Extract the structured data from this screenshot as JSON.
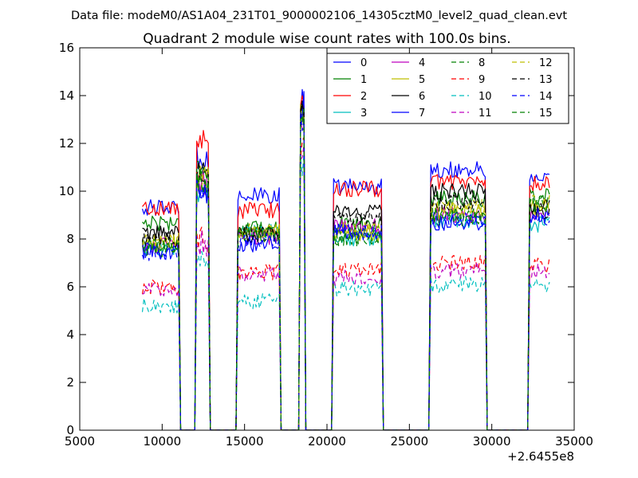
{
  "figure": {
    "suptitle": "Data file: modeM0/AS1A04_231T01_9000002106_14305cztM0_level2_quad_clean.evt",
    "offset_label": "+2.6455e8"
  },
  "chart_data": {
    "type": "line",
    "title": "Quadrant 2 module wise count rates with 100.0s bins.",
    "xlabel": "",
    "ylabel": "",
    "xlim": [
      5000,
      35000
    ],
    "ylim": [
      0,
      16
    ],
    "x_offset": 264550000,
    "xticks": [
      5000,
      10000,
      15000,
      20000,
      25000,
      30000,
      35000
    ],
    "yticks": [
      0,
      2,
      4,
      6,
      8,
      10,
      12,
      14,
      16
    ],
    "grid": false,
    "legend_location": "upper right",
    "legend_columns": 4,
    "active_segments": [
      {
        "start": 8800,
        "end": 11000
      },
      {
        "start": 12100,
        "end": 12800
      },
      {
        "start": 14600,
        "end": 17100
      },
      {
        "start": 18400,
        "end": 18600
      },
      {
        "start": 20400,
        "end": 23300
      },
      {
        "start": 26300,
        "end": 29600
      },
      {
        "start": 32300,
        "end": 33500
      }
    ],
    "series": [
      {
        "name": "0",
        "color": "#0000ff",
        "style": "solid",
        "levels": [
          9.3,
          11.5,
          9.8,
          13.7,
          10.2,
          10.9,
          10.4
        ]
      },
      {
        "name": "1",
        "color": "#008000",
        "style": "solid",
        "levels": [
          8.7,
          11.0,
          8.4,
          13.2,
          8.6,
          9.7,
          9.8
        ]
      },
      {
        "name": "2",
        "color": "#ff0000",
        "style": "solid",
        "levels": [
          9.3,
          12.0,
          9.2,
          13.9,
          10.1,
          10.4,
          10.3
        ]
      },
      {
        "name": "3",
        "color": "#00bfbf",
        "style": "solid",
        "levels": [
          7.6,
          10.1,
          8.3,
          12.9,
          8.0,
          8.8,
          8.6
        ]
      },
      {
        "name": "4",
        "color": "#bf00bf",
        "style": "solid",
        "levels": [
          7.7,
          10.4,
          8.1,
          13.0,
          8.5,
          9.0,
          8.9
        ]
      },
      {
        "name": "5",
        "color": "#bfbf00",
        "style": "solid",
        "levels": [
          7.8,
          10.6,
          8.3,
          13.1,
          8.2,
          9.2,
          9.3
        ]
      },
      {
        "name": "6",
        "color": "#000000",
        "style": "solid",
        "levels": [
          8.2,
          10.8,
          8.2,
          13.4,
          9.1,
          10.0,
          9.3
        ]
      },
      {
        "name": "7",
        "color": "#0000ff",
        "style": "solid",
        "levels": [
          7.5,
          10.0,
          7.8,
          13.6,
          8.3,
          8.7,
          9.0
        ]
      },
      {
        "name": "8",
        "color": "#008000",
        "style": "dashed",
        "levels": [
          7.6,
          10.4,
          8.3,
          13.0,
          8.1,
          8.9,
          9.5
        ]
      },
      {
        "name": "9",
        "color": "#ff0000",
        "style": "dashed",
        "levels": [
          6.0,
          8.1,
          6.6,
          11.8,
          6.7,
          7.0,
          6.9
        ]
      },
      {
        "name": "10",
        "color": "#00bfbf",
        "style": "dashed",
        "levels": [
          5.2,
          7.0,
          5.4,
          11.2,
          5.9,
          6.1,
          6.1
        ]
      },
      {
        "name": "11",
        "color": "#bf00bf",
        "style": "dashed",
        "levels": [
          5.9,
          7.8,
          6.5,
          11.6,
          6.4,
          6.7,
          6.7
        ]
      },
      {
        "name": "12",
        "color": "#bfbf00",
        "style": "dashed",
        "levels": [
          7.9,
          10.6,
          8.3,
          12.9,
          8.4,
          9.3,
          9.5
        ]
      },
      {
        "name": "13",
        "color": "#000000",
        "style": "dashed",
        "levels": [
          8.0,
          10.9,
          8.2,
          13.1,
          8.8,
          9.5,
          9.2
        ]
      },
      {
        "name": "14",
        "color": "#0000ff",
        "style": "dashed",
        "levels": [
          7.4,
          10.1,
          7.9,
          12.8,
          8.3,
          8.8,
          8.9
        ]
      },
      {
        "name": "15",
        "color": "#008000",
        "style": "dashed",
        "levels": [
          7.7,
          10.5,
          8.2,
          13.0,
          8.0,
          9.0,
          9.4
        ]
      }
    ]
  }
}
